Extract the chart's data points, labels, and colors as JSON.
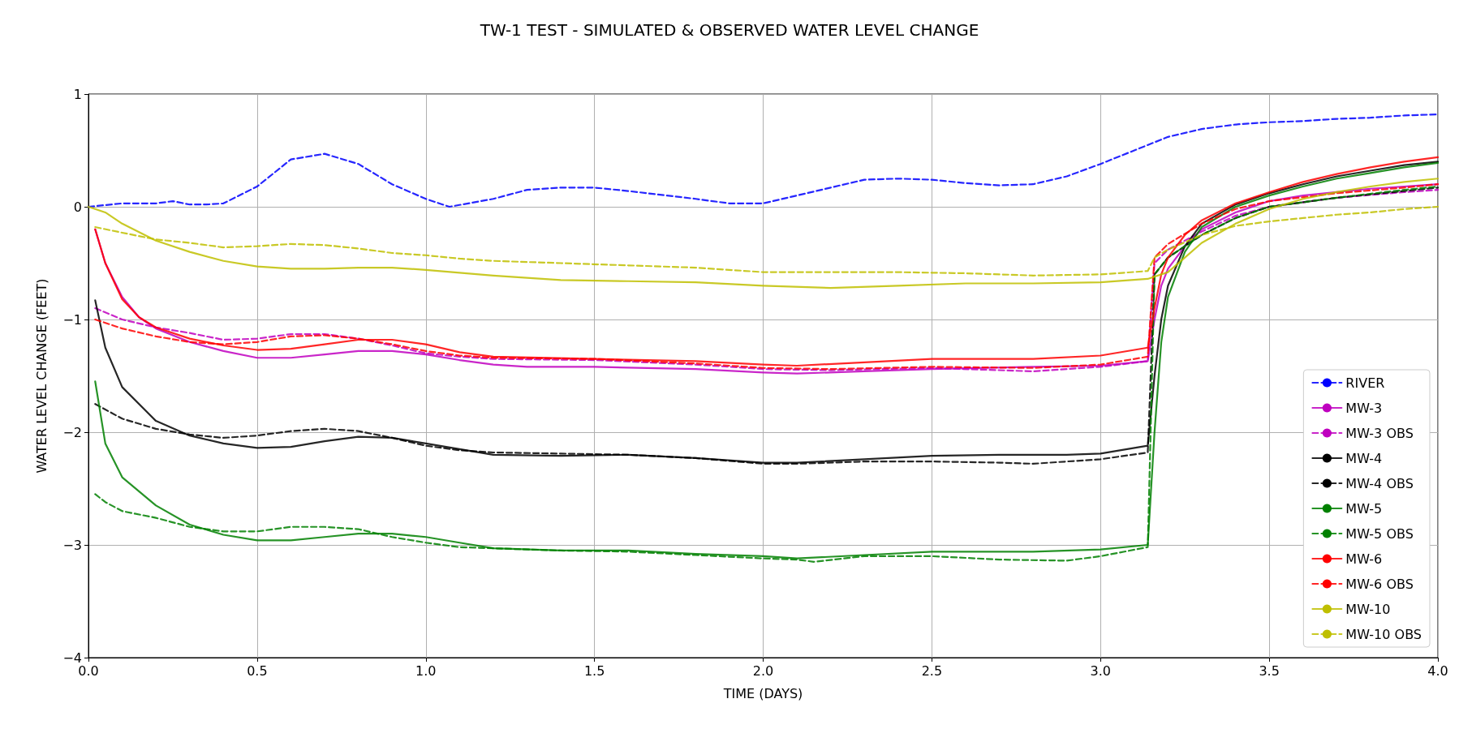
{
  "chart_data": {
    "type": "line",
    "title": "TW-1 TEST - SIMULATED & OBSERVED WATER LEVEL CHANGE",
    "xlabel": "TIME (DAYS)",
    "ylabel": "WATER LEVEL CHANGE (FEET)",
    "xlim": [
      0,
      4
    ],
    "xticks": [
      {
        "value": 0,
        "label": "0.0"
      },
      {
        "value": 0.5,
        "label": "0.5"
      },
      {
        "value": 1,
        "label": "1.0"
      },
      {
        "value": 1.5,
        "label": "1.5"
      },
      {
        "value": 2,
        "label": "2.0"
      },
      {
        "value": 2.5,
        "label": "2.5"
      },
      {
        "value": 3,
        "label": "3.0"
      },
      {
        "value": 3.5,
        "label": "3.5"
      },
      {
        "value": 4,
        "label": "4.0"
      }
    ],
    "ylim": [
      -4,
      1
    ],
    "yticks": [
      {
        "value": -4,
        "label": "−4"
      },
      {
        "value": -3,
        "label": "−3"
      },
      {
        "value": -2,
        "label": "−2"
      },
      {
        "value": -1,
        "label": "−1"
      },
      0,
      1
    ],
    "grid": true,
    "legend": "bottom right",
    "marker": "none",
    "series": [
      {
        "name": "RIVER",
        "color": "#0000ff",
        "line_style": "dashed",
        "x": [
          0,
          0.1,
          0.2,
          0.25,
          0.3,
          0.35,
          0.4,
          0.5,
          0.6,
          0.7,
          0.8,
          0.9,
          1.0,
          1.07,
          1.2,
          1.3,
          1.4,
          1.5,
          1.6,
          1.8,
          1.9,
          2.0,
          2.1,
          2.2,
          2.3,
          2.4,
          2.5,
          2.6,
          2.7,
          2.8,
          2.9,
          3.0,
          3.1,
          3.2,
          3.3,
          3.4,
          3.5,
          3.6,
          3.7,
          3.8,
          3.9,
          4.0
        ],
        "values": [
          0,
          0.03,
          0.03,
          0.05,
          0.02,
          0.02,
          0.03,
          0.18,
          0.42,
          0.47,
          0.38,
          0.2,
          0.07,
          0,
          0.07,
          0.15,
          0.17,
          0.17,
          0.14,
          0.07,
          0.03,
          0.03,
          0.1,
          0.17,
          0.24,
          0.25,
          0.24,
          0.21,
          0.19,
          0.2,
          0.27,
          0.38,
          0.5,
          0.62,
          0.69,
          0.73,
          0.75,
          0.76,
          0.78,
          0.79,
          0.81,
          0.82
        ]
      },
      {
        "name": "MW-3",
        "color": "#bf00bf",
        "line_style": "solid",
        "x": [
          0.02,
          0.05,
          0.1,
          0.15,
          0.2,
          0.3,
          0.4,
          0.5,
          0.6,
          0.7,
          0.8,
          0.9,
          1.0,
          1.1,
          1.2,
          1.3,
          1.5,
          1.8,
          2.0,
          2.1,
          2.3,
          2.5,
          2.8,
          3.0,
          3.14,
          3.16,
          3.18,
          3.2,
          3.25,
          3.3,
          3.4,
          3.5,
          3.6,
          3.7,
          3.8,
          3.9,
          4.0
        ],
        "values": [
          -0.2,
          -0.5,
          -0.8,
          -0.98,
          -1.08,
          -1.2,
          -1.28,
          -1.34,
          -1.34,
          -1.31,
          -1.28,
          -1.28,
          -1.31,
          -1.36,
          -1.4,
          -1.42,
          -1.42,
          -1.44,
          -1.47,
          -1.48,
          -1.46,
          -1.44,
          -1.42,
          -1.41,
          -1.37,
          -1.0,
          -0.7,
          -0.55,
          -0.35,
          -0.2,
          -0.05,
          0.05,
          0.1,
          0.13,
          0.16,
          0.18,
          0.2
        ]
      },
      {
        "name": "MW-3 OBS",
        "color": "#bf00bf",
        "line_style": "dashed",
        "x": [
          0.02,
          0.1,
          0.2,
          0.3,
          0.4,
          0.5,
          0.6,
          0.7,
          0.8,
          0.9,
          1.0,
          1.1,
          1.2,
          1.5,
          1.8,
          2.0,
          2.2,
          2.5,
          2.8,
          3.0,
          3.14,
          3.16,
          3.2,
          3.3,
          3.4,
          3.5,
          3.7,
          3.9,
          4.0
        ],
        "values": [
          -0.9,
          -1.0,
          -1.07,
          -1.12,
          -1.18,
          -1.17,
          -1.13,
          -1.13,
          -1.17,
          -1.23,
          -1.3,
          -1.33,
          -1.35,
          -1.36,
          -1.4,
          -1.44,
          -1.45,
          -1.43,
          -1.46,
          -1.42,
          -1.37,
          -0.5,
          -0.38,
          -0.22,
          -0.08,
          0,
          0.08,
          0.13,
          0.15
        ]
      },
      {
        "name": "MW-4",
        "color": "#000000",
        "line_style": "solid",
        "x": [
          0.02,
          0.05,
          0.1,
          0.2,
          0.3,
          0.4,
          0.5,
          0.6,
          0.7,
          0.8,
          0.9,
          1.0,
          1.1,
          1.2,
          1.4,
          1.6,
          1.8,
          2.0,
          2.1,
          2.3,
          2.5,
          2.7,
          2.9,
          3.0,
          3.14,
          3.16,
          3.18,
          3.2,
          3.25,
          3.3,
          3.4,
          3.5,
          3.6,
          3.7,
          3.8,
          3.9,
          4.0
        ],
        "values": [
          -0.83,
          -1.25,
          -1.6,
          -1.9,
          -2.03,
          -2.1,
          -2.14,
          -2.13,
          -2.08,
          -2.04,
          -2.05,
          -2.1,
          -2.15,
          -2.2,
          -2.21,
          -2.2,
          -2.23,
          -2.27,
          -2.27,
          -2.24,
          -2.21,
          -2.2,
          -2.2,
          -2.19,
          -2.12,
          -1.5,
          -1.0,
          -0.7,
          -0.35,
          -0.15,
          0.02,
          0.12,
          0.2,
          0.27,
          0.32,
          0.37,
          0.4
        ]
      },
      {
        "name": "MW-4 OBS",
        "color": "#000000",
        "line_style": "dashed",
        "x": [
          0.02,
          0.1,
          0.2,
          0.3,
          0.4,
          0.5,
          0.6,
          0.7,
          0.8,
          0.9,
          1.0,
          1.1,
          1.2,
          1.4,
          1.6,
          1.8,
          2.0,
          2.1,
          2.3,
          2.5,
          2.7,
          2.8,
          3.0,
          3.14,
          3.16,
          3.2,
          3.3,
          3.4,
          3.5,
          3.7,
          3.9,
          4.0
        ],
        "values": [
          -1.75,
          -1.88,
          -1.97,
          -2.02,
          -2.05,
          -2.03,
          -1.99,
          -1.97,
          -1.99,
          -2.05,
          -2.12,
          -2.16,
          -2.18,
          -2.19,
          -2.2,
          -2.23,
          -2.28,
          -2.28,
          -2.26,
          -2.26,
          -2.27,
          -2.28,
          -2.24,
          -2.18,
          -0.6,
          -0.45,
          -0.25,
          -0.1,
          0,
          0.08,
          0.14,
          0.17
        ]
      },
      {
        "name": "MW-5",
        "color": "#008000",
        "line_style": "solid",
        "x": [
          0.02,
          0.05,
          0.1,
          0.2,
          0.3,
          0.4,
          0.5,
          0.6,
          0.7,
          0.8,
          0.9,
          1.0,
          1.1,
          1.2,
          1.4,
          1.6,
          1.8,
          2.0,
          2.1,
          2.3,
          2.5,
          2.8,
          3.0,
          3.14,
          3.16,
          3.18,
          3.2,
          3.25,
          3.3,
          3.4,
          3.5,
          3.6,
          3.7,
          3.8,
          3.9,
          4.0
        ],
        "values": [
          -1.55,
          -2.1,
          -2.4,
          -2.65,
          -2.82,
          -2.91,
          -2.96,
          -2.96,
          -2.93,
          -2.9,
          -2.9,
          -2.93,
          -2.98,
          -3.03,
          -3.05,
          -3.05,
          -3.08,
          -3.1,
          -3.12,
          -3.09,
          -3.06,
          -3.06,
          -3.04,
          -3.0,
          -2.0,
          -1.2,
          -0.8,
          -0.4,
          -0.18,
          0,
          0.1,
          0.18,
          0.25,
          0.3,
          0.35,
          0.39
        ]
      },
      {
        "name": "MW-5 OBS",
        "color": "#008000",
        "line_style": "dashed",
        "x": [
          0.02,
          0.05,
          0.1,
          0.2,
          0.3,
          0.4,
          0.5,
          0.6,
          0.7,
          0.8,
          0.9,
          1.0,
          1.1,
          1.2,
          1.4,
          1.6,
          1.8,
          2.0,
          2.1,
          2.15,
          2.3,
          2.5,
          2.7,
          2.9,
          3.0,
          3.14,
          3.16,
          3.2,
          3.3,
          3.4,
          3.5,
          3.7,
          3.9,
          4.0
        ],
        "values": [
          -2.55,
          -2.62,
          -2.7,
          -2.76,
          -2.84,
          -2.88,
          -2.88,
          -2.84,
          -2.84,
          -2.86,
          -2.93,
          -2.98,
          -3.02,
          -3.03,
          -3.05,
          -3.06,
          -3.09,
          -3.12,
          -3.13,
          -3.15,
          -3.1,
          -3.1,
          -3.13,
          -3.14,
          -3.1,
          -3.02,
          -0.6,
          -0.45,
          -0.25,
          -0.1,
          0,
          0.08,
          0.15,
          0.18
        ]
      },
      {
        "name": "MW-6",
        "color": "#ff0000",
        "line_style": "solid",
        "x": [
          0.02,
          0.05,
          0.1,
          0.15,
          0.2,
          0.3,
          0.4,
          0.5,
          0.6,
          0.7,
          0.8,
          0.9,
          1.0,
          1.1,
          1.2,
          1.5,
          1.8,
          2.0,
          2.1,
          2.3,
          2.5,
          2.8,
          3.0,
          3.14,
          3.16,
          3.18,
          3.2,
          3.25,
          3.3,
          3.4,
          3.5,
          3.6,
          3.7,
          3.8,
          3.9,
          4.0
        ],
        "values": [
          -0.2,
          -0.5,
          -0.82,
          -0.98,
          -1.07,
          -1.17,
          -1.23,
          -1.27,
          -1.26,
          -1.22,
          -1.18,
          -1.18,
          -1.22,
          -1.29,
          -1.33,
          -1.35,
          -1.37,
          -1.4,
          -1.41,
          -1.38,
          -1.35,
          -1.35,
          -1.32,
          -1.25,
          -0.9,
          -0.6,
          -0.45,
          -0.25,
          -0.12,
          0.03,
          0.13,
          0.22,
          0.29,
          0.35,
          0.4,
          0.44
        ]
      },
      {
        "name": "MW-6 OBS",
        "color": "#ff0000",
        "line_style": "dashed",
        "x": [
          0.02,
          0.1,
          0.2,
          0.3,
          0.4,
          0.5,
          0.6,
          0.7,
          0.8,
          0.9,
          1.0,
          1.1,
          1.2,
          1.5,
          1.8,
          2.0,
          2.2,
          2.5,
          2.8,
          3.0,
          3.14,
          3.16,
          3.2,
          3.3,
          3.4,
          3.5,
          3.7,
          3.9,
          4.0
        ],
        "values": [
          -1.0,
          -1.08,
          -1.15,
          -1.2,
          -1.22,
          -1.2,
          -1.15,
          -1.14,
          -1.17,
          -1.22,
          -1.28,
          -1.32,
          -1.34,
          -1.35,
          -1.39,
          -1.43,
          -1.44,
          -1.42,
          -1.43,
          -1.4,
          -1.33,
          -0.45,
          -0.33,
          -0.15,
          -0.02,
          0.05,
          0.12,
          0.17,
          0.2
        ]
      },
      {
        "name": "MW-10",
        "color": "#bfbf00",
        "line_style": "solid",
        "x": [
          0,
          0.05,
          0.1,
          0.2,
          0.3,
          0.4,
          0.5,
          0.6,
          0.7,
          0.8,
          0.9,
          1.0,
          1.2,
          1.4,
          1.6,
          1.8,
          2.0,
          2.2,
          2.4,
          2.6,
          2.8,
          3.0,
          3.14,
          3.2,
          3.25,
          3.3,
          3.4,
          3.5,
          3.6,
          3.7,
          3.8,
          3.9,
          4.0
        ],
        "values": [
          0,
          -0.05,
          -0.15,
          -0.3,
          -0.4,
          -0.48,
          -0.53,
          -0.55,
          -0.55,
          -0.54,
          -0.54,
          -0.56,
          -0.61,
          -0.65,
          -0.66,
          -0.67,
          -0.7,
          -0.72,
          -0.7,
          -0.68,
          -0.68,
          -0.67,
          -0.64,
          -0.58,
          -0.45,
          -0.32,
          -0.15,
          -0.02,
          0.07,
          0.13,
          0.18,
          0.22,
          0.25
        ]
      },
      {
        "name": "MW-10 OBS",
        "color": "#bfbf00",
        "line_style": "dashed",
        "x": [
          0.02,
          0.1,
          0.2,
          0.3,
          0.4,
          0.5,
          0.6,
          0.7,
          0.8,
          0.9,
          1.0,
          1.1,
          1.2,
          1.4,
          1.6,
          1.8,
          2.0,
          2.2,
          2.4,
          2.6,
          2.8,
          3.0,
          3.14,
          3.16,
          3.2,
          3.3,
          3.4,
          3.5,
          3.6,
          3.7,
          3.8,
          3.9,
          4.0
        ],
        "values": [
          -0.18,
          -0.23,
          -0.29,
          -0.32,
          -0.36,
          -0.35,
          -0.33,
          -0.34,
          -0.37,
          -0.41,
          -0.43,
          -0.46,
          -0.48,
          -0.5,
          -0.52,
          -0.54,
          -0.58,
          -0.58,
          -0.58,
          -0.59,
          -0.61,
          -0.6,
          -0.57,
          -0.45,
          -0.38,
          -0.25,
          -0.17,
          -0.13,
          -0.1,
          -0.07,
          -0.05,
          -0.02,
          0
        ]
      }
    ]
  }
}
